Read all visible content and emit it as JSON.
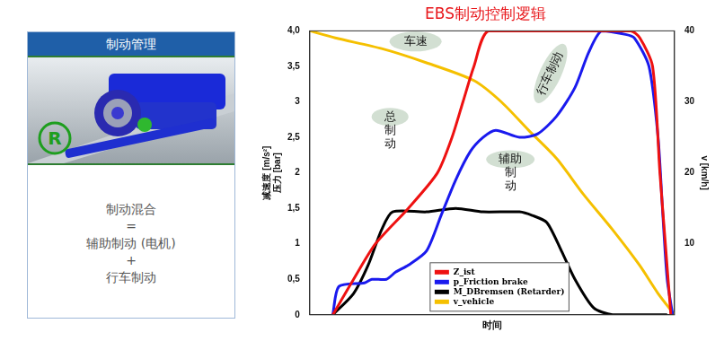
{
  "panel": {
    "header": "制动管理",
    "icon_label": "R",
    "text_lines": [
      "制动混合",
      "=",
      "辅助制动 (电机)",
      "+",
      "行车制动"
    ]
  },
  "chart_data": {
    "type": "line",
    "title": "EBS制动控制逻辑",
    "x_label": "时间",
    "y_label": [
      "减速度 [m/s²]",
      "压力 [bar]"
    ],
    "y2_label": "v [km/h]",
    "xlim": [
      0,
      100
    ],
    "ylim": [
      0,
      4
    ],
    "yticks": [
      0,
      {
        "value": 0.5,
        "label": "0,5"
      },
      1,
      {
        "value": 1.5,
        "label": "1,5"
      },
      2,
      {
        "value": 2.5,
        "label": "2,5"
      },
      3,
      {
        "value": 3.5,
        "label": "3,5"
      },
      {
        "value": 4,
        "label": "4,0"
      }
    ],
    "y2lim": [
      0,
      40
    ],
    "y2ticks": [
      10,
      20,
      30,
      40
    ],
    "grid": false,
    "legend": "lower center",
    "tick_labels": "y",
    "annotations": [
      "车速",
      "总制动",
      "行车制动",
      "辅助制动"
    ],
    "series": [
      {
        "name": "Z_ist",
        "color": "#ee1111",
        "x": [
          6.3,
          12,
          18,
          27,
          35,
          39,
          42,
          45,
          49,
          70,
          88,
          90.5,
          94,
          96,
          97.5,
          99
        ],
        "values": [
          0,
          0.5,
          1.0,
          1.5,
          2.0,
          2.5,
          3.0,
          3.5,
          4.0,
          4.0,
          4.0,
          3.9,
          3.5,
          2.0,
          1.0,
          0
        ]
      },
      {
        "name": "p_Friction brake",
        "color": "#1a1aee",
        "x": [
          6.3,
          8,
          15,
          17,
          21,
          23.5,
          27,
          32,
          36,
          40,
          44,
          47.5,
          51,
          57.5,
          62.5,
          67.7,
          72.7,
          76.5,
          80,
          86.6,
          89,
          93,
          95.5,
          96.7,
          98,
          99.5
        ],
        "values": [
          0,
          0.4,
          0.45,
          0.5,
          0.5,
          0.6,
          0.7,
          0.9,
          1.4,
          1.9,
          2.3,
          2.5,
          2.6,
          2.5,
          2.55,
          2.8,
          3.2,
          3.7,
          4.0,
          3.95,
          3.9,
          3.5,
          2.5,
          1.5,
          0.5,
          0
        ]
      },
      {
        "name": "M_DBremsen (Retarder)",
        "color": "#000000",
        "x": [
          6.3,
          12,
          16,
          19.7,
          22.7,
          32,
          40,
          47.5,
          57.5,
          61,
          65,
          69,
          72.7,
          77.8,
          83,
          98
        ],
        "values": [
          0,
          0.3,
          0.7,
          1.2,
          1.45,
          1.45,
          1.5,
          1.45,
          1.45,
          1.4,
          1.3,
          0.9,
          0.5,
          0.1,
          0,
          0
        ]
      },
      {
        "name": "v_vehicle",
        "color": "#f5c000",
        "axis": "y2",
        "x": [
          0,
          7,
          19.7,
          32,
          45,
          52.5,
          60,
          67.7,
          75,
          83,
          90.4,
          95.5,
          100
        ],
        "values": [
          40,
          39,
          37.5,
          35.5,
          33,
          30,
          26,
          22,
          17,
          12,
          7,
          3,
          0
        ]
      }
    ]
  }
}
